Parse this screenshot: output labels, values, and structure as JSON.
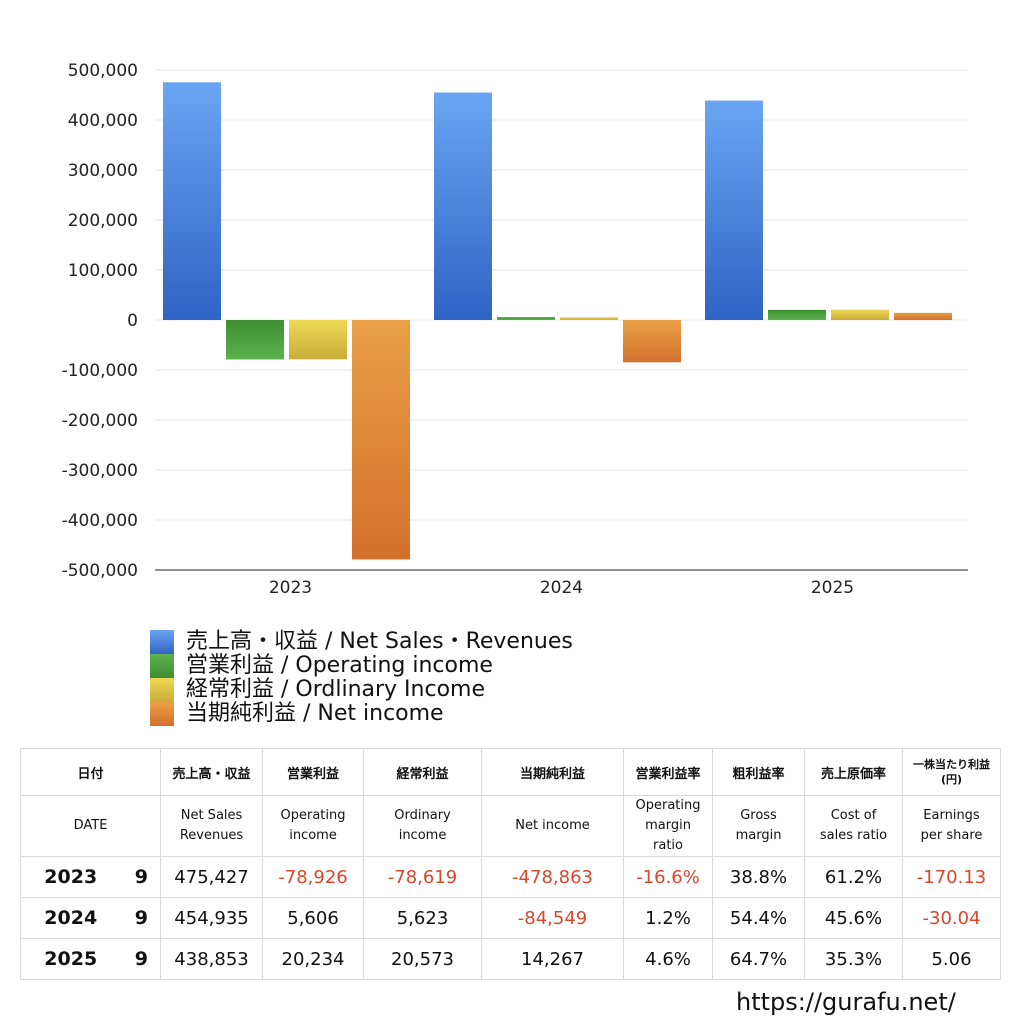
{
  "chart_data": {
    "type": "bar",
    "categories": [
      "2023",
      "2024",
      "2025"
    ],
    "series": [
      {
        "name": "売上高・収益 / Net Sales・Revenues",
        "values": [
          475427,
          454935,
          438853
        ]
      },
      {
        "name": "営業利益 / Operating income",
        "values": [
          -78926,
          5606,
          20234
        ]
      },
      {
        "name": "経常利益 / Ordlinary Income",
        "values": [
          -78619,
          5623,
          20573
        ]
      },
      {
        "name": "当期純利益 / Net income",
        "values": [
          -478863,
          -84549,
          14267
        ]
      }
    ],
    "ylim": [
      -500000,
      500000
    ],
    "yticks": [
      500000,
      400000,
      300000,
      200000,
      100000,
      0,
      -100000,
      -200000,
      -300000,
      -400000,
      -500000
    ],
    "ytick_labels": [
      "500,000",
      "400,000",
      "300,000",
      "200,000",
      "100,000",
      "0",
      "-100,000",
      "-200,000",
      "-300,000",
      "-400,000",
      "-500,000"
    ],
    "colors": {
      "sales": [
        "#6aa5f2",
        "#2f63c5"
      ],
      "operating": [
        "#5cb24e",
        "#3e8e32"
      ],
      "ordinary": [
        "#eed956",
        "#c9ac38"
      ],
      "net": [
        "#e9a046",
        "#d3702c"
      ]
    },
    "grid": true,
    "legend_position": "bottom-left"
  },
  "legend": [
    {
      "label": "売上高・収益 / Net Sales・Revenues",
      "color": "#4f8be0"
    },
    {
      "label": "営業利益 / Operating income",
      "color": "#4aa040"
    },
    {
      "label": "経常利益 / Ordlinary Income",
      "color": "#dcc548"
    },
    {
      "label": "当期純利益 / Net income",
      "color": "#de8237"
    }
  ],
  "table": {
    "header_jp": {
      "date": "日付",
      "sales": "売上高・収益",
      "operating": "営業利益",
      "ordinary": "経常利益",
      "net": "当期純利益",
      "op_margin": "営業利益率",
      "gross_margin": "粗利益率",
      "cost_ratio": "売上原価率",
      "eps_line1": "一株当たり利益",
      "eps_line2": "(円)"
    },
    "header_en": {
      "date": "DATE",
      "sales_1": "Net Sales",
      "sales_2": "Revenues",
      "operating_1": "Operating",
      "operating_2": "income",
      "ordinary_1": "Ordinary",
      "ordinary_2": "income",
      "net": "Net income",
      "op_margin_1": "Operating",
      "op_margin_2": "margin",
      "op_margin_3": "ratio",
      "gross_1": "Gross",
      "gross_2": "margin",
      "cost_1": "Cost of",
      "cost_2": "sales ratio",
      "eps_1": "Earnings",
      "eps_2": "per share"
    },
    "rows": [
      {
        "year": "2023",
        "month": "9",
        "sales": "475,427",
        "operating": "-78,926",
        "ordinary": "-78,619",
        "net": "-478,863",
        "op_margin": "-16.6%",
        "gross": "38.8%",
        "cost": "61.2%",
        "eps": "-170.13"
      },
      {
        "year": "2024",
        "month": "9",
        "sales": "454,935",
        "operating": "5,606",
        "ordinary": "5,623",
        "net": "-84,549",
        "op_margin": "1.2%",
        "gross": "54.4%",
        "cost": "45.6%",
        "eps": "-30.04"
      },
      {
        "year": "2025",
        "month": "9",
        "sales": "438,853",
        "operating": "20,234",
        "ordinary": "20,573",
        "net": "14,267",
        "op_margin": "4.6%",
        "gross": "64.7%",
        "cost": "35.3%",
        "eps": "5.06"
      }
    ]
  },
  "footer": {
    "url": "https://gurafu.net/"
  }
}
